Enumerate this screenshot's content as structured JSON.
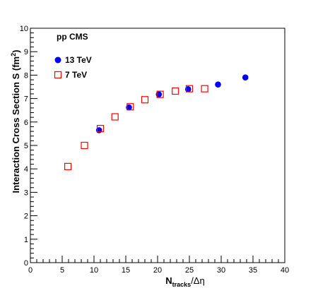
{
  "chart_data": {
    "type": "scatter",
    "legend_title": "pp  CMS",
    "legend_position": "top-left",
    "xlabel": {
      "main": "N",
      "sub": "tracks",
      "suffix": "/Δη"
    },
    "ylabel": {
      "main": "Interaction Cross Section S",
      "suffix": " (fm",
      "sup": "2",
      "end": ")"
    },
    "xlim": [
      0,
      40
    ],
    "ylim": [
      0,
      10
    ],
    "x_ticks": [
      "0",
      "5",
      "10",
      "15",
      "20",
      "25",
      "30",
      "35",
      "40"
    ],
    "y_ticks": [
      "0",
      "1",
      "2",
      "3",
      "4",
      "5",
      "6",
      "7",
      "8",
      "9",
      "10"
    ],
    "grid": false,
    "series": [
      {
        "name": "13 TeV",
        "marker": "filled-circle",
        "color": "#0000ff",
        "points": [
          [
            10.8,
            5.65
          ],
          [
            15.5,
            6.62
          ],
          [
            20.2,
            7.18
          ],
          [
            24.8,
            7.4
          ],
          [
            29.5,
            7.6
          ],
          [
            33.8,
            7.9
          ]
        ]
      },
      {
        "name": "7 TeV",
        "marker": "open-square",
        "color": "#ff0000",
        "points": [
          [
            5.9,
            4.1
          ],
          [
            8.5,
            5.0
          ],
          [
            11.0,
            5.72
          ],
          [
            13.3,
            6.22
          ],
          [
            15.7,
            6.65
          ],
          [
            18.0,
            6.95
          ],
          [
            20.4,
            7.18
          ],
          [
            22.8,
            7.32
          ],
          [
            25.0,
            7.42
          ],
          [
            27.4,
            7.42
          ]
        ]
      }
    ]
  }
}
